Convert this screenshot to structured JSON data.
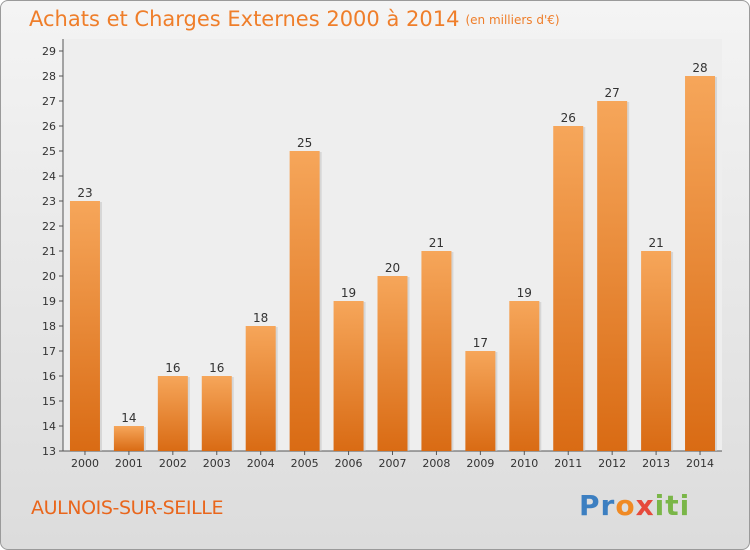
{
  "title": "Achats et Charges Externes 2000 à 2014",
  "unit": "(en milliers d'€)",
  "commune": "AULNOIS-SUR-SEILLE",
  "logo": {
    "p1": "Pr",
    "p2": "o",
    "p3": "x",
    "p4": "iti"
  },
  "colors": {
    "bar_light": "#f6a65a",
    "bar_dark": "#d96b14",
    "title": "#ef7e2a",
    "logo_blue": "#3c7fc1",
    "logo_orange": "#f08a24",
    "logo_red": "#e64a3c",
    "logo_green": "#7ab648"
  },
  "chart_data": {
    "type": "bar",
    "categories": [
      "2000",
      "2001",
      "2002",
      "2003",
      "2004",
      "2005",
      "2006",
      "2007",
      "2008",
      "2009",
      "2010",
      "2011",
      "2012",
      "2013",
      "2014"
    ],
    "values": [
      23,
      14,
      16,
      16,
      18,
      25,
      19,
      20,
      21,
      17,
      19,
      26,
      27,
      21,
      28
    ],
    "title": "Achats et Charges Externes 2000 à 2014",
    "ylim": [
      13,
      29
    ],
    "yticks": [
      13,
      14,
      15,
      16,
      17,
      18,
      19,
      20,
      21,
      22,
      23,
      24,
      25,
      26,
      27,
      28,
      29
    ],
    "grid": false,
    "data_labels": true
  }
}
